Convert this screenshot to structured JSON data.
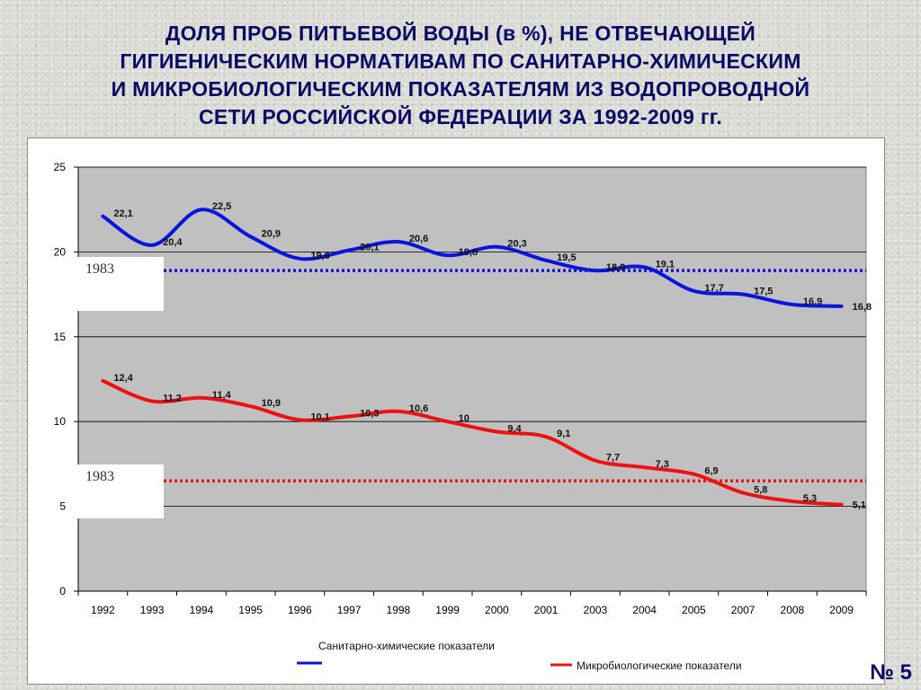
{
  "slide": {
    "title_lines": [
      "ДОЛЯ ПРОБ ПИТЬЕВОЙ ВОДЫ (в %), НЕ ОТВЕЧАЮЩЕЙ",
      "ГИГИЕНИЧЕСКИМ НОРМАТИВАМ ПО САНИТАРНО-ХИМИЧЕСКИМ",
      "И МИКРОБИОЛОГИЧЕСКИМ ПОКАЗАТЕЛЯМ ИЗ ВОДОПРОВОДНОЙ",
      "СЕТИ РОССИЙСКОЙ ФЕДЕРАЦИИ ЗА 1992-2009 гг."
    ],
    "number": "№ 5"
  },
  "chart_data": {
    "type": "line",
    "categories": [
      "1992",
      "1993",
      "1994",
      "1995",
      "1996",
      "1997",
      "1998",
      "1999",
      "2000",
      "2001",
      "2003",
      "2004",
      "2005",
      "2007",
      "2008",
      "2009"
    ],
    "series": [
      {
        "name": "Санитарно-химические показатели",
        "color": "#0a14dc",
        "values": [
          22.1,
          20.4,
          22.5,
          20.9,
          19.6,
          20.1,
          20.6,
          19.8,
          20.3,
          19.5,
          18.9,
          19.1,
          17.7,
          17.5,
          16.9,
          16.8
        ],
        "labels": [
          "22,1",
          "20,4",
          "22,5",
          "20,9",
          "19,6",
          "20,1",
          "20,6",
          "19,8",
          "20,3",
          "19,5",
          "18,9",
          "19,1",
          "17,7",
          "17,5",
          "16,9",
          "16,8"
        ]
      },
      {
        "name": "Микробиологические показатели",
        "color": "#ee1111",
        "values": [
          12.4,
          11.2,
          11.4,
          10.9,
          10.1,
          10.3,
          10.6,
          10.0,
          9.4,
          9.1,
          7.7,
          7.3,
          6.9,
          5.8,
          5.3,
          5.1
        ],
        "labels": [
          "12,4",
          "11,2",
          "11,4",
          "10,9",
          "10,1",
          "10,3",
          "10,6",
          "10",
          "9,4",
          "9,1",
          "7,7",
          "7,3",
          "6,9",
          "5,8",
          "5,3",
          "5,1"
        ]
      }
    ],
    "reference_lines": [
      {
        "label": "1983",
        "value": 18.9,
        "color": "#1414d2"
      },
      {
        "label": "1983",
        "value": 6.5,
        "color": "#e01c1c"
      }
    ],
    "y_ticks": [
      0,
      5,
      10,
      15,
      20,
      25
    ],
    "ylim": [
      0,
      25
    ],
    "grid": true,
    "legend_position": "bottom",
    "plot_background": "#c0c0c0"
  }
}
